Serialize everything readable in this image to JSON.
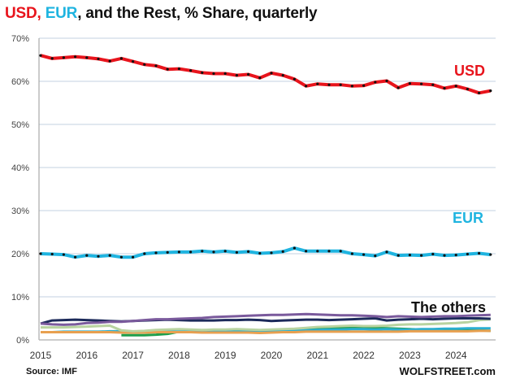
{
  "title": {
    "part_usd": "USD,",
    "part_eur": " EUR",
    "part_rest": ", and the Rest, % Share, quarterly"
  },
  "source": "Source: IMF",
  "watermark": "WOLFSTREET.com",
  "chart_data": {
    "type": "line",
    "title": "USD, EUR, and the Rest, % Share, quarterly",
    "xlabel": "",
    "ylabel": "",
    "ylim": [
      0,
      70
    ],
    "y_ticks": [
      "0%",
      "10%",
      "20%",
      "30%",
      "40%",
      "50%",
      "60%",
      "70%"
    ],
    "x_ticks": [
      "2015",
      "2016",
      "2017",
      "2018",
      "2019",
      "2020",
      "2021",
      "2022",
      "2023",
      "2024"
    ],
    "x_start": "2015 Q1",
    "x_end": "2024 Q4",
    "frequency": "quarterly",
    "grid": true,
    "annotations": [
      "USD",
      "EUR",
      "The others"
    ],
    "series": [
      {
        "name": "USD",
        "color": "#e8141c",
        "markers": true,
        "values": [
          66.0,
          65.3,
          65.5,
          65.7,
          65.5,
          65.2,
          64.7,
          65.3,
          64.6,
          63.9,
          63.6,
          62.8,
          62.9,
          62.5,
          62.0,
          61.8,
          61.8,
          61.4,
          61.6,
          60.8,
          61.9,
          61.4,
          60.5,
          58.9,
          59.4,
          59.2,
          59.2,
          58.9,
          59.0,
          59.8,
          60.1,
          58.5,
          59.5,
          59.4,
          59.2,
          58.4,
          58.9,
          58.2,
          57.3,
          57.8
        ]
      },
      {
        "name": "EUR",
        "color": "#1fb4e0",
        "markers": true,
        "values": [
          20.0,
          19.9,
          19.8,
          19.2,
          19.6,
          19.4,
          19.6,
          19.2,
          19.2,
          20.0,
          20.2,
          20.3,
          20.4,
          20.4,
          20.6,
          20.4,
          20.6,
          20.3,
          20.5,
          20.1,
          20.2,
          20.5,
          21.3,
          20.6,
          20.6,
          20.6,
          20.6,
          20.0,
          19.8,
          19.5,
          20.4,
          19.6,
          19.7,
          19.6,
          19.9,
          19.6,
          19.7,
          19.9,
          20.1,
          19.8
        ]
      },
      {
        "color": "#7a5a9c",
        "values": [
          3.8,
          3.6,
          3.5,
          3.6,
          3.9,
          4.0,
          4.2,
          4.2,
          4.4,
          4.6,
          4.8,
          4.8,
          4.9,
          5.0,
          5.1,
          5.3,
          5.4,
          5.5,
          5.6,
          5.7,
          5.8,
          5.8,
          5.9,
          6.0,
          5.9,
          5.8,
          5.7,
          5.7,
          5.6,
          5.5,
          5.3,
          5.5,
          5.4,
          5.3,
          5.4,
          5.5,
          5.5,
          5.6,
          5.7,
          5.8
        ]
      },
      {
        "color": "#1c2a5a",
        "values": [
          3.8,
          4.5,
          4.6,
          4.7,
          4.6,
          4.5,
          4.4,
          4.3,
          4.4,
          4.5,
          4.6,
          4.7,
          4.6,
          4.5,
          4.5,
          4.5,
          4.6,
          4.6,
          4.7,
          4.6,
          4.4,
          4.5,
          4.6,
          4.7,
          4.7,
          4.6,
          4.7,
          4.8,
          4.9,
          5.0,
          4.5,
          4.7,
          4.8,
          4.9,
          4.8,
          4.9,
          5.0,
          5.0,
          5.0,
          4.9
        ]
      },
      {
        "color": "#b8d3a0",
        "values": [
          2.9,
          2.9,
          2.9,
          3.0,
          3.1,
          3.2,
          3.3,
          2.2,
          2.0,
          2.1,
          2.3,
          2.4,
          2.5,
          2.4,
          2.3,
          2.4,
          2.4,
          2.5,
          2.4,
          2.3,
          2.4,
          2.5,
          2.6,
          2.8,
          3.0,
          3.1,
          3.2,
          3.3,
          3.2,
          3.2,
          3.3,
          3.5,
          3.6,
          3.6,
          3.7,
          3.8,
          3.9,
          4.1,
          4.6,
          4.8
        ]
      },
      {
        "color": "#e8a050",
        "values": [
          1.8,
          1.8,
          1.8,
          1.8,
          1.8,
          1.8,
          1.8,
          1.7,
          1.7,
          1.7,
          1.8,
          1.8,
          1.8,
          1.8,
          1.7,
          1.7,
          1.7,
          1.7,
          1.7,
          1.6,
          1.7,
          1.8,
          1.8,
          1.9,
          1.9,
          1.9,
          1.9,
          1.9,
          1.9,
          1.9,
          1.9,
          1.9,
          2.0,
          2.0,
          2.0,
          2.0,
          2.0,
          2.0,
          2.1,
          2.1
        ]
      },
      {
        "color": "#2aaed0",
        "values": [
          1.8,
          1.8,
          1.9,
          1.9,
          1.9,
          1.9,
          2.0,
          2.0,
          1.9,
          1.9,
          2.0,
          2.0,
          1.9,
          1.9,
          1.9,
          1.9,
          1.9,
          1.9,
          1.9,
          2.0,
          2.0,
          2.1,
          2.1,
          2.2,
          2.3,
          2.4,
          2.4,
          2.5,
          2.5,
          2.4,
          2.5,
          2.4,
          2.4,
          2.5,
          2.5,
          2.6,
          2.6,
          2.7,
          2.7,
          2.7
        ]
      },
      {
        "color": "#1f9e4a",
        "values": [
          null,
          null,
          null,
          null,
          null,
          null,
          null,
          1.1,
          1.1,
          1.1,
          1.2,
          1.4,
          1.9,
          1.9,
          1.9,
          2.0,
          2.0,
          2.0,
          2.0,
          2.0,
          2.1,
          2.2,
          2.3,
          2.4,
          2.6,
          2.8,
          2.8,
          2.9,
          2.9,
          2.8,
          2.7,
          2.6,
          2.5,
          2.4,
          2.3,
          2.3,
          2.3,
          2.2,
          2.2,
          2.1
        ]
      }
    ]
  }
}
